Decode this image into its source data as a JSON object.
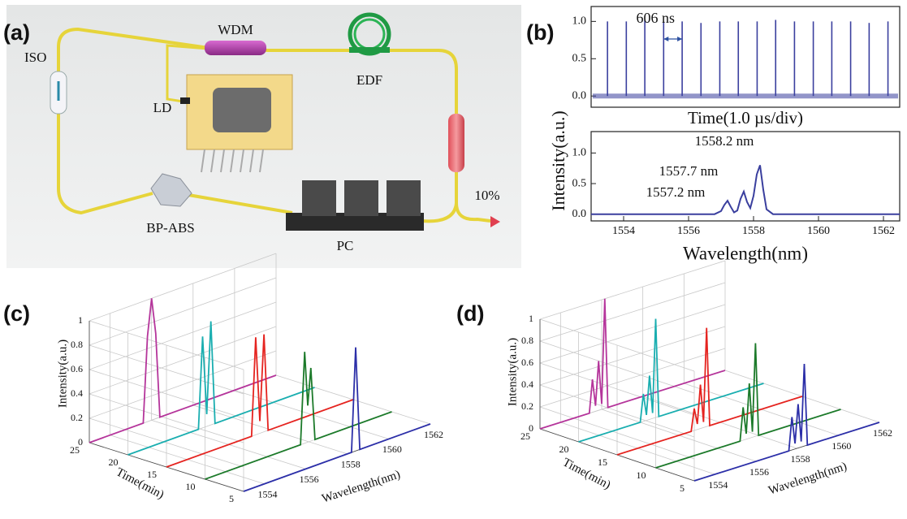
{
  "panels": {
    "a": "(a)",
    "b": "(b)",
    "c": "(c)",
    "d": "(d)"
  },
  "diagram": {
    "iso": "ISO",
    "wdm": "WDM",
    "edf": "EDF",
    "ld": "LD",
    "bp_abs": "BP-ABS",
    "pc": "PC",
    "output": "10%"
  },
  "chart_data": [
    {
      "type": "pulse",
      "color": "#3a3f9e",
      "x": [
        0.53,
        1.14,
        1.74,
        2.35,
        2.95,
        3.56,
        4.17,
        4.77,
        5.38,
        5.98,
        6.59,
        7.2,
        7.8,
        8.41,
        9.01,
        9.62
      ],
      "values": [
        1.0,
        1.0,
        1.02,
        1.0,
        1.0,
        0.98,
        1.0,
        1.0,
        1.0,
        1.02,
        1.0,
        1.0,
        1.0,
        1.0,
        0.98,
        1.0
      ],
      "xlim": [
        0,
        10
      ],
      "ylim": [
        -0.15,
        1.2
      ],
      "yticks": [
        {
          "value": 0,
          "label": "0.0"
        },
        {
          "value": 0.5,
          "label": "0.5"
        },
        {
          "value": 1,
          "label": "1.0"
        }
      ],
      "xlabel": "Time(1.0 µs/div)",
      "ylabel": "Intensity(a.u.)",
      "annotation": "606 ns"
    },
    {
      "type": "line",
      "color": "#3a3f9e",
      "x": [
        1553,
        1556.8,
        1557.0,
        1557.1,
        1557.2,
        1557.3,
        1557.4,
        1557.5,
        1557.6,
        1557.7,
        1557.8,
        1557.9,
        1558.0,
        1558.1,
        1558.2,
        1558.3,
        1558.4,
        1558.6,
        1562.5
      ],
      "values": [
        0,
        0,
        0.05,
        0.15,
        0.22,
        0.12,
        0.03,
        0.06,
        0.25,
        0.37,
        0.2,
        0.1,
        0.3,
        0.65,
        0.8,
        0.4,
        0.08,
        0,
        0
      ],
      "xlim": [
        1553,
        1562.5
      ],
      "xticks": [
        1554,
        1556,
        1558,
        1560,
        1562
      ],
      "ylim": [
        -0.11,
        1.35
      ],
      "yticks": [
        {
          "value": 0,
          "label": "0.0"
        },
        {
          "value": 0.5,
          "label": "0.5"
        },
        {
          "value": 1,
          "label": "1.0"
        }
      ],
      "xlabel": "Wavelength(nm)",
      "annotations": [
        "1557.2 nm",
        "1557.7 nm",
        "1558.2 nm"
      ]
    },
    {
      "type": "waterfall",
      "xlabel": "Wavelength(nm)",
      "ylabel": "Time(min)",
      "zlabel": "Intensity(a.u.)",
      "xlim": [
        1553,
        1562
      ],
      "xticks": [
        1554,
        1556,
        1558,
        1560,
        1562
      ],
      "ylim": [
        5,
        25
      ],
      "yticks": [
        5,
        10,
        15,
        20,
        25
      ],
      "zlim": [
        0,
        1
      ],
      "zticks": [
        0,
        0.2,
        0.4,
        0.6,
        0.8,
        1
      ],
      "series": [
        {
          "color": "#b5359b",
          "time": 25,
          "x": [
            1553,
            1555.6,
            1555.8,
            1556,
            1556.2,
            1556.4,
            1562
          ],
          "values": [
            0,
            0,
            0.7,
            1,
            0.7,
            0,
            0
          ]
        },
        {
          "color": "#1aaeb0",
          "time": 20,
          "x": [
            1553,
            1556.4,
            1556.6,
            1556.8,
            1557,
            1557.2,
            1562
          ],
          "values": [
            0,
            0,
            0.75,
            0.1,
            0.85,
            0,
            0
          ]
        },
        {
          "color": "#e52420",
          "time": 15,
          "x": [
            1553,
            1557.1,
            1557.3,
            1557.5,
            1557.7,
            1557.9,
            1562
          ],
          "values": [
            0,
            0,
            0.8,
            0.1,
            0.8,
            0,
            0
          ]
        },
        {
          "color": "#1c7a2a",
          "time": 10,
          "x": [
            1553,
            1557.6,
            1557.8,
            1557.95,
            1558.1,
            1558.3,
            1562
          ],
          "values": [
            0,
            0,
            0.75,
            0.3,
            0.6,
            0,
            0
          ]
        },
        {
          "color": "#2c2fa8",
          "time": 5,
          "x": [
            1553,
            1558.2,
            1558.4,
            1558.6,
            1562
          ],
          "values": [
            0,
            0,
            0.85,
            0,
            0
          ]
        }
      ]
    },
    {
      "type": "waterfall",
      "xlabel": "Wavelength(nm)",
      "ylabel": "Time(min)",
      "zlabel": "Intensity(a.u.)",
      "xlim": [
        1553,
        1562
      ],
      "xticks": [
        1554,
        1556,
        1558,
        1560,
        1562
      ],
      "ylim": [
        5,
        25
      ],
      "yticks": [
        5,
        10,
        15,
        20,
        25
      ],
      "zlim": [
        0,
        1
      ],
      "zticks": [
        0,
        0.2,
        0.4,
        0.6,
        0.8,
        1
      ],
      "series": [
        {
          "color": "#b5359b",
          "time": 25,
          "x": [
            1553,
            1555.4,
            1555.55,
            1555.7,
            1555.85,
            1556,
            1556.15,
            1556.3,
            1562
          ],
          "values": [
            0,
            0,
            0.3,
            0.05,
            0.45,
            0.05,
            1,
            0,
            0
          ]
        },
        {
          "color": "#1aaeb0",
          "time": 20,
          "x": [
            1553,
            1556.0,
            1556.15,
            1556.3,
            1556.45,
            1556.6,
            1556.75,
            1556.9,
            1562
          ],
          "values": [
            0,
            0,
            0.25,
            0.05,
            0.4,
            0.05,
            0.9,
            0,
            0
          ]
        },
        {
          "color": "#e52420",
          "time": 15,
          "x": [
            1553,
            1556.6,
            1556.75,
            1556.9,
            1557.05,
            1557.2,
            1557.35,
            1557.5,
            1562
          ],
          "values": [
            0,
            0,
            0.2,
            0.05,
            0.4,
            0.05,
            0.9,
            0,
            0
          ]
        },
        {
          "color": "#1c7a2a",
          "time": 10,
          "x": [
            1553,
            1557.1,
            1557.25,
            1557.4,
            1557.55,
            1557.7,
            1557.85,
            1558,
            1562
          ],
          "values": [
            0,
            0,
            0.3,
            0.05,
            0.5,
            0.05,
            0.85,
            0,
            0
          ]
        },
        {
          "color": "#2c2fa8",
          "time": 5,
          "x": [
            1553,
            1557.6,
            1557.75,
            1557.9,
            1558.05,
            1558.2,
            1558.35,
            1558.5,
            1562
          ],
          "values": [
            0,
            0,
            0.3,
            0.05,
            0.4,
            0.05,
            0.75,
            0,
            0
          ]
        }
      ]
    }
  ]
}
